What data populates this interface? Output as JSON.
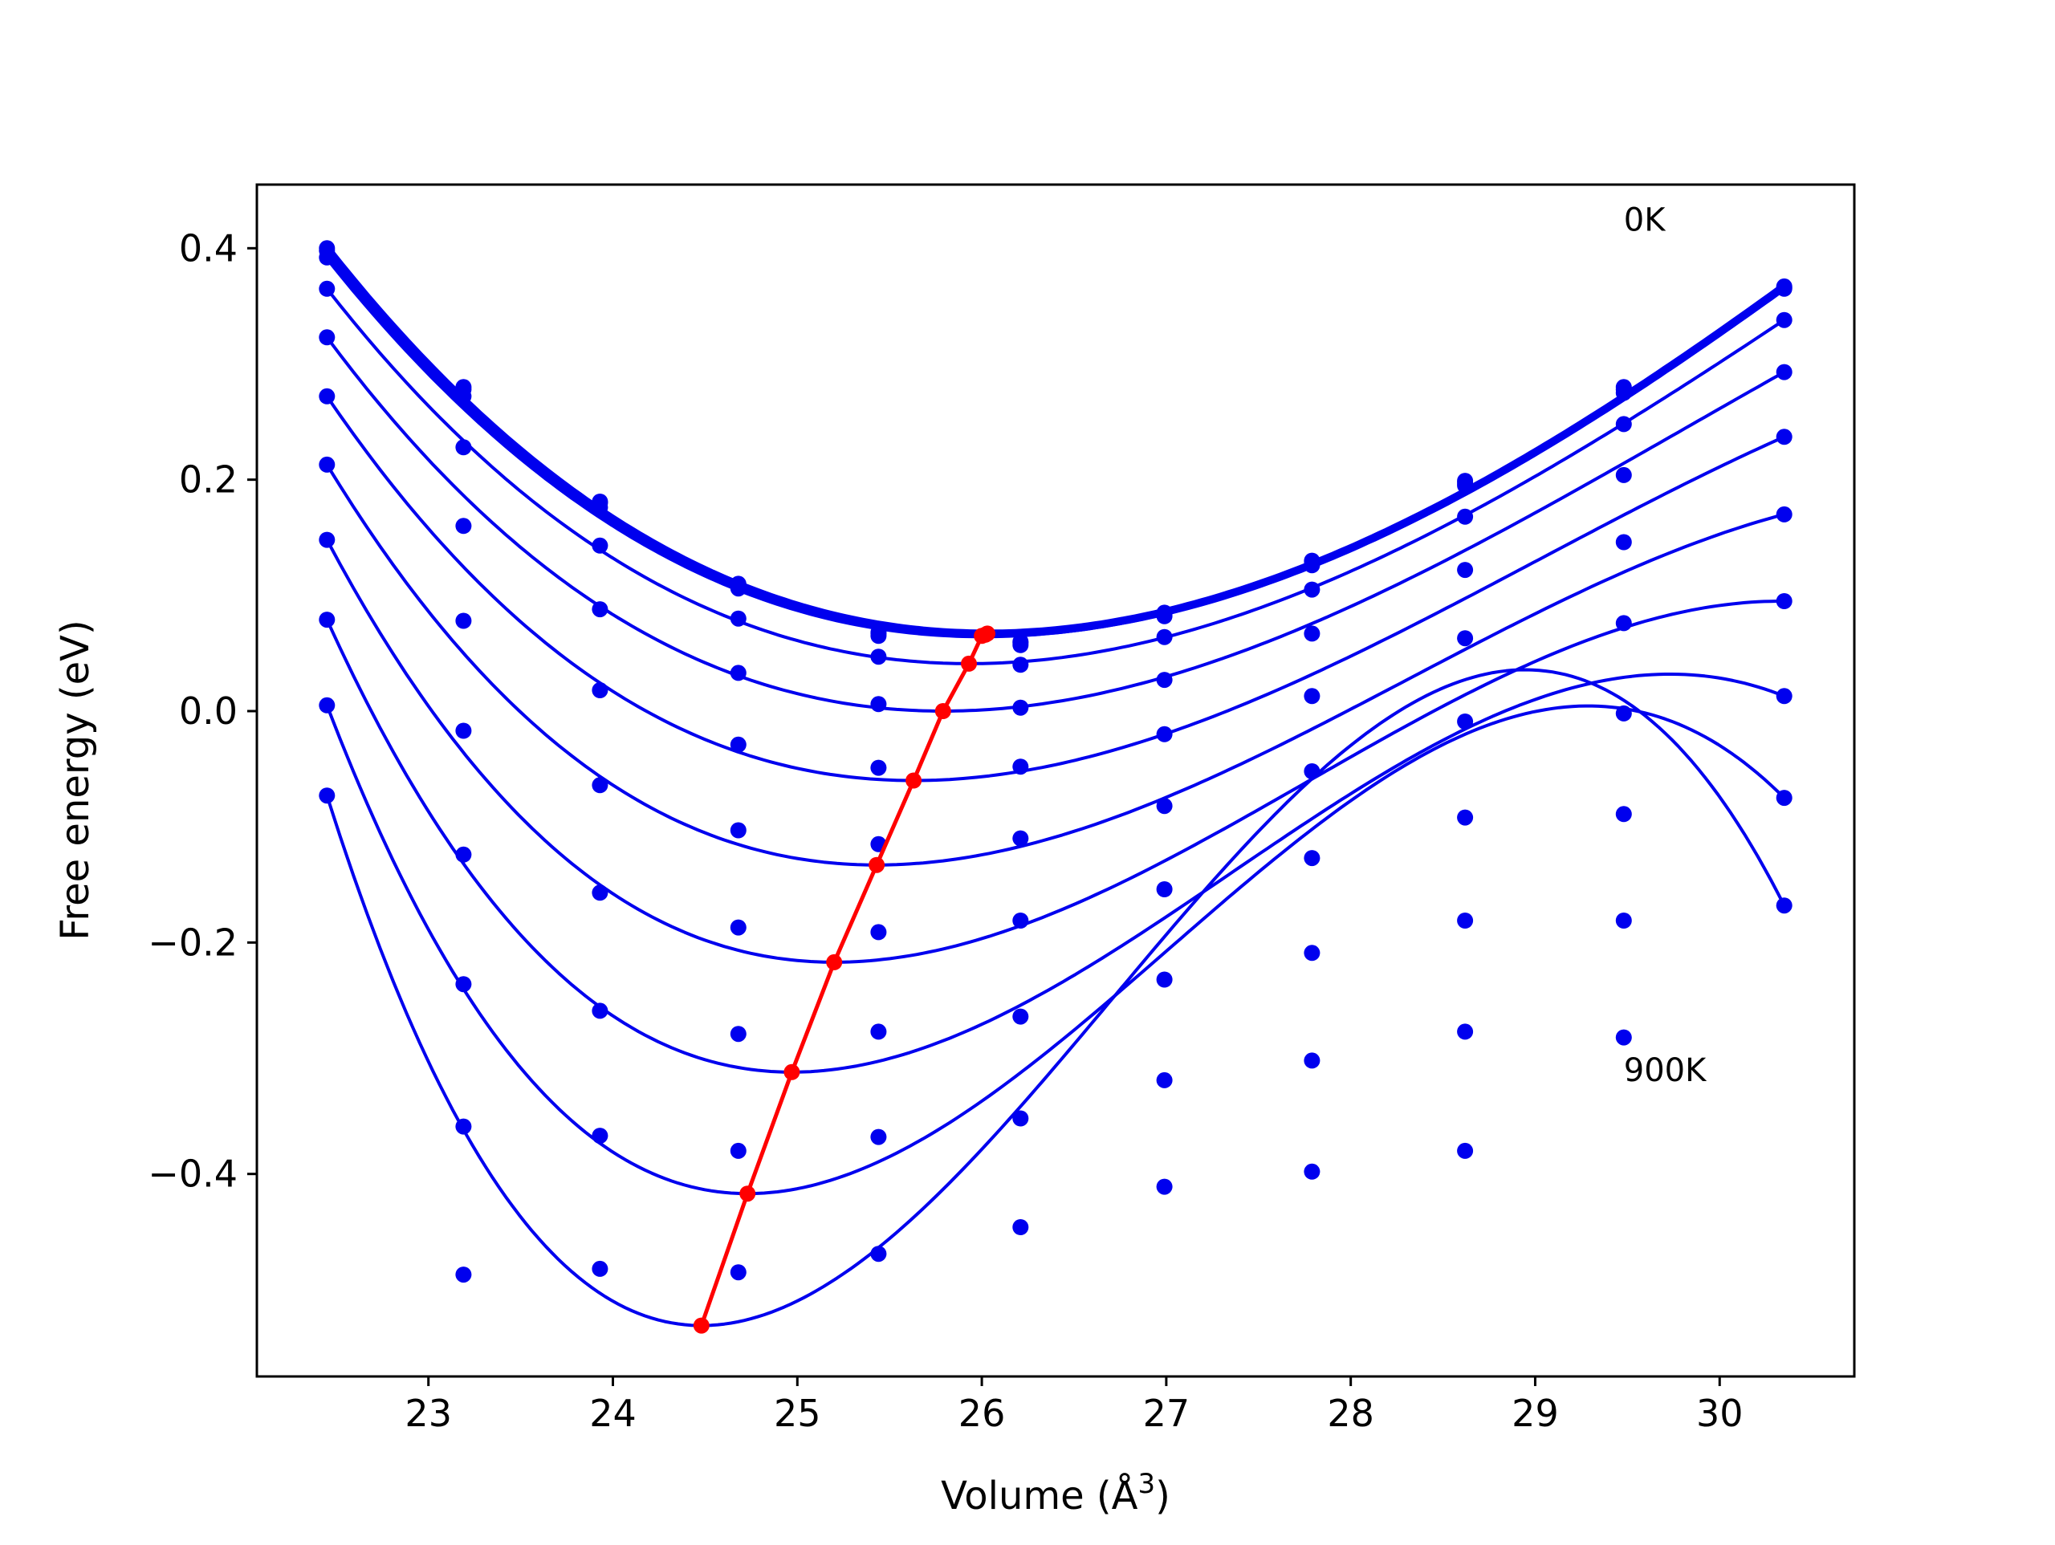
{
  "chart_data": {
    "type": "line",
    "title": "",
    "xlabel": "Volume (",
    "xlabel_unit_base": "Å",
    "xlabel_unit_sup": "3",
    "xlabel_close": ")",
    "ylabel": "Free energy (eV)",
    "xlim": [
      22.07,
      30.73
    ],
    "ylim": [
      -0.575,
      0.455
    ],
    "xticks": [
      23,
      24,
      25,
      26,
      27,
      28,
      29,
      30
    ],
    "yticks": [
      -0.4,
      -0.2,
      0.0,
      0.2,
      0.4
    ],
    "xtick_labels": [
      "23",
      "24",
      "25",
      "26",
      "27",
      "28",
      "29",
      "30"
    ],
    "ytick_labels": [
      "−0.4",
      "−0.2",
      "0.0",
      "0.2",
      "0.4"
    ],
    "grid": false,
    "legend": "none",
    "annotations": [
      {
        "text": "0K",
        "x": 29.48,
        "y": 0.425
      },
      {
        "text": "900K",
        "x": 29.48,
        "y": -0.31
      }
    ],
    "colors": {
      "fit": "#0000ee",
      "points": "#0000ee",
      "minima": "#ff0000"
    },
    "volumes": [
      22.45,
      23.19,
      23.93,
      24.68,
      25.44,
      26.21,
      26.99,
      27.79,
      28.62,
      29.48,
      30.35
    ],
    "series": [
      {
        "values": [
          0.4,
          0.28,
          0.181,
          0.11,
          0.068,
          0.06,
          0.085,
          0.13,
          0.199,
          0.28,
          0.367
        ],
        "min": [
          26.03,
          0.067
        ],
        "fit_lw": 10
      },
      {
        "values": [
          0.398,
          0.278,
          0.18,
          0.109,
          0.067,
          0.059,
          0.084,
          0.129,
          0.197,
          0.278,
          0.366
        ],
        "min": [
          26.02,
          0.066
        ],
        "fit_lw": 8
      },
      {
        "values": [
          0.392,
          0.272,
          0.176,
          0.106,
          0.065,
          0.057,
          0.082,
          0.126,
          0.195,
          0.275,
          0.365
        ],
        "min": [
          26.0,
          0.065
        ],
        "fit_lw": 6
      },
      {
        "values": [
          0.365,
          0.228,
          0.143,
          0.08,
          0.047,
          0.04,
          0.064,
          0.105,
          0.168,
          0.248,
          0.338
        ],
        "min": [
          25.93,
          0.041
        ],
        "fit_lw": 4
      },
      {
        "values": [
          0.323,
          0.16,
          0.088,
          0.033,
          0.006,
          0.003,
          0.027,
          0.067,
          0.122,
          0.204,
          0.293
        ],
        "min": [
          25.79,
          0.0
        ],
        "fit_lw": 4
      },
      {
        "values": [
          0.272,
          0.078,
          0.018,
          -0.029,
          -0.049,
          -0.048,
          -0.02,
          0.013,
          0.063,
          0.146,
          0.237
        ],
        "min": [
          25.63,
          -0.06
        ],
        "fit_lw": 4
      },
      {
        "values": [
          0.213,
          -0.017,
          -0.064,
          -0.103,
          -0.115,
          -0.11,
          -0.082,
          -0.052,
          -0.009,
          0.076,
          0.17
        ],
        "min": [
          25.43,
          -0.133
        ],
        "fit_lw": 4
      },
      {
        "values": [
          0.148,
          -0.124,
          -0.157,
          -0.187,
          -0.191,
          -0.181,
          -0.154,
          -0.127,
          -0.092,
          -0.002,
          0.095
        ],
        "min": [
          25.2,
          -0.217
        ],
        "fit_lw": 4
      },
      {
        "values": [
          0.079,
          -0.236,
          -0.259,
          -0.279,
          -0.277,
          -0.264,
          -0.232,
          -0.209,
          -0.181,
          -0.089,
          0.013
        ],
        "min": [
          24.97,
          -0.312
        ],
        "fit_lw": 4
      },
      {
        "values": [
          0.005,
          -0.359,
          -0.367,
          -0.38,
          -0.368,
          -0.352,
          -0.319,
          -0.302,
          -0.277,
          -0.181,
          -0.075
        ],
        "min": [
          24.73,
          -0.417
        ],
        "fit_lw": 4
      },
      {
        "values": [
          -0.073,
          -0.487,
          -0.482,
          -0.485,
          -0.469,
          -0.446,
          -0.411,
          -0.398,
          -0.38,
          -0.282,
          -0.168
        ],
        "min": [
          24.48,
          -0.531
        ],
        "fit_lw": 4
      }
    ]
  }
}
